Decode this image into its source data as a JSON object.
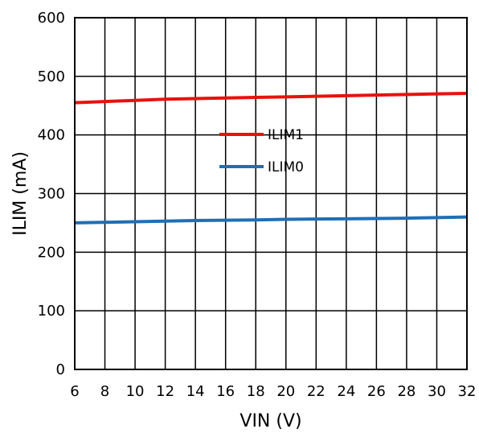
{
  "chart_data": {
    "type": "line",
    "xlabel": "VIN (V)",
    "ylabel": "ILIM (mA)",
    "xlim": [
      6,
      32
    ],
    "ylim": [
      0,
      600
    ],
    "x_ticks": [
      6,
      8,
      10,
      12,
      14,
      16,
      18,
      20,
      22,
      24,
      26,
      28,
      30,
      32
    ],
    "y_ticks": [
      0,
      100,
      200,
      300,
      400,
      500,
      600
    ],
    "x_tick_labels": [
      "6",
      "8",
      "10",
      "12",
      "14",
      "16",
      "18",
      "20",
      "22",
      "24",
      "26",
      "28",
      "30",
      "32"
    ],
    "y_tick_labels": [
      "0",
      "100",
      "200",
      "300",
      "400",
      "500",
      "600"
    ],
    "grid": true,
    "legend_position": "center",
    "series": [
      {
        "name": "ILIM1",
        "color": "#e8120c",
        "x": [
          6,
          8,
          10,
          12,
          14,
          16,
          18,
          20,
          22,
          24,
          26,
          28,
          30,
          32
        ],
        "y": [
          455,
          457,
          459,
          461,
          462,
          463,
          464,
          465,
          466,
          467,
          468,
          469,
          470,
          471
        ]
      },
      {
        "name": "ILIM0",
        "color": "#1f6fb5",
        "x": [
          6,
          8,
          10,
          12,
          14,
          16,
          18,
          20,
          22,
          24,
          26,
          28,
          30,
          32
        ],
        "y": [
          250,
          251,
          252,
          253,
          254,
          254.5,
          255,
          256,
          256.5,
          257,
          257.5,
          258,
          259,
          260
        ]
      }
    ]
  }
}
